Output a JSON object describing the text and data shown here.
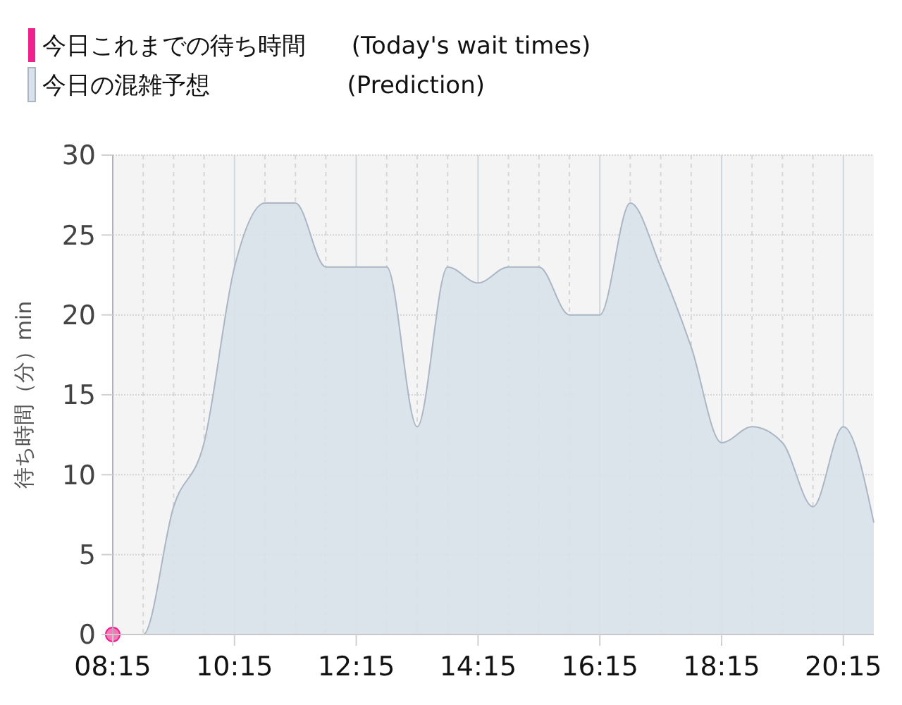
{
  "chart_data": {
    "type": "area",
    "ylabel": "待ち時間（分）min",
    "legend": "top left",
    "grid": true,
    "xlim": [
      8.25,
      20.75
    ],
    "ylim": [
      0,
      30
    ],
    "yticks": [
      0,
      5,
      10,
      15,
      20,
      25,
      30
    ],
    "xticks": [
      {
        "value": 8.25,
        "label": "08:15"
      },
      {
        "value": 8.75,
        "label": null
      },
      {
        "value": 9.25,
        "label": null
      },
      {
        "value": 9.75,
        "label": null
      },
      {
        "value": 10.25,
        "label": "10:15"
      },
      {
        "value": 10.75,
        "label": null
      },
      {
        "value": 11.25,
        "label": null
      },
      {
        "value": 11.75,
        "label": null
      },
      {
        "value": 12.25,
        "label": "12:15"
      },
      {
        "value": 12.75,
        "label": null
      },
      {
        "value": 13.25,
        "label": null
      },
      {
        "value": 13.75,
        "label": null
      },
      {
        "value": 14.25,
        "label": "14:15"
      },
      {
        "value": 14.75,
        "label": null
      },
      {
        "value": 15.25,
        "label": null
      },
      {
        "value": 15.75,
        "label": null
      },
      {
        "value": 16.25,
        "label": "16:15"
      },
      {
        "value": 16.75,
        "label": null
      },
      {
        "value": 17.25,
        "label": null
      },
      {
        "value": 17.75,
        "label": null
      },
      {
        "value": 18.25,
        "label": "18:15"
      },
      {
        "value": 18.75,
        "label": null
      },
      {
        "value": 19.25,
        "label": null
      },
      {
        "value": 19.75,
        "label": null
      },
      {
        "value": 20.25,
        "label": "20:15"
      }
    ],
    "series": [
      {
        "name": "今日これまでの待ち時間      (Today's wait times)",
        "type": "scatter",
        "marker": "circle",
        "color": "#f0208c",
        "x": [
          8.25
        ],
        "values": [
          0
        ]
      },
      {
        "name": "今日の混雑予想                  (Prediction)",
        "color": "#d9e2ea",
        "x": [
          8.25,
          8.75,
          9.25,
          9.75,
          10.25,
          10.75,
          11.25,
          11.75,
          12.25,
          12.75,
          13.25,
          13.75,
          14.25,
          14.75,
          15.25,
          15.75,
          16.25,
          16.75,
          17.25,
          17.75,
          18.25,
          18.75,
          19.25,
          19.75,
          20.25,
          20.75
        ],
        "values": [
          0,
          0,
          8,
          12,
          23,
          27,
          27,
          23,
          23,
          23,
          13,
          23,
          22,
          23,
          23,
          20,
          20,
          27,
          23,
          18,
          12,
          13,
          12,
          8,
          13,
          7
        ]
      }
    ]
  }
}
